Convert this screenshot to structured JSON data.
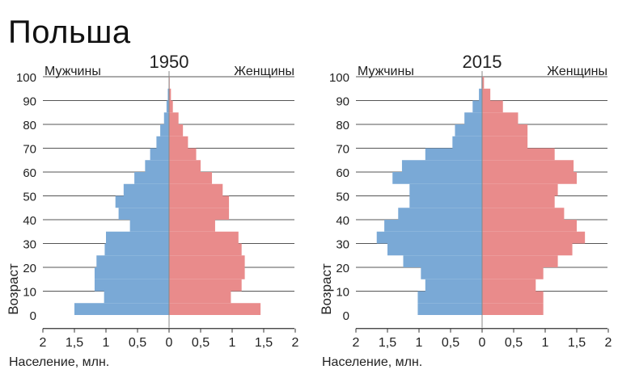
{
  "title": "Польша",
  "colors": {
    "male": "#7aa9d6",
    "female": "#e98b8b",
    "grid": "#555555",
    "axis": "#333333"
  },
  "chart_data": [
    {
      "type": "bar",
      "orientation": "horizontal-population-pyramid",
      "year_label": "1950",
      "left_label": "Мужчины",
      "right_label": "Женщины",
      "ylabel": "Возраст",
      "xlabel": "Население, млн.",
      "y_ticks": [
        "0",
        "10",
        "20",
        "30",
        "40",
        "50",
        "60",
        "70",
        "80",
        "90",
        "100"
      ],
      "x_ticks": [
        "2",
        "1,5",
        "1",
        "0,5",
        "0",
        "0,5",
        "1",
        "1,5",
        "2"
      ],
      "xlim": [
        -2,
        2
      ],
      "ylim": [
        -5,
        100
      ],
      "grid": true,
      "age_groups": [
        0,
        5,
        10,
        15,
        20,
        25,
        30,
        35,
        40,
        45,
        50,
        55,
        60,
        65,
        70,
        75,
        80,
        85,
        90,
        95
      ],
      "series": [
        {
          "name": "Мужчины",
          "values": [
            1.5,
            1.03,
            1.18,
            1.18,
            1.15,
            1.02,
            1.0,
            0.62,
            0.8,
            0.85,
            0.72,
            0.55,
            0.38,
            0.3,
            0.2,
            0.14,
            0.08,
            0.04,
            0.02,
            0.005
          ]
        },
        {
          "name": "Женщины",
          "values": [
            1.45,
            0.98,
            1.15,
            1.2,
            1.2,
            1.15,
            1.1,
            0.73,
            0.95,
            0.95,
            0.85,
            0.68,
            0.5,
            0.43,
            0.3,
            0.22,
            0.15,
            0.06,
            0.03,
            0.01
          ]
        }
      ]
    },
    {
      "type": "bar",
      "orientation": "horizontal-population-pyramid",
      "year_label": "2015",
      "left_label": "Мужчины",
      "right_label": "Женщины",
      "ylabel": "Возраст",
      "xlabel": "Население, млн.",
      "y_ticks": [
        "0",
        "10",
        "20",
        "30",
        "40",
        "50",
        "60",
        "70",
        "80",
        "90",
        "100"
      ],
      "x_ticks": [
        "2",
        "1,5",
        "1",
        "0,5",
        "0",
        "0,5",
        "1",
        "1,5",
        "2"
      ],
      "xlim": [
        -2,
        2
      ],
      "ylim": [
        -5,
        100
      ],
      "grid": true,
      "age_groups": [
        0,
        5,
        10,
        15,
        20,
        25,
        30,
        35,
        40,
        45,
        50,
        55,
        60,
        65,
        70,
        75,
        80,
        85,
        90,
        95
      ],
      "series": [
        {
          "name": "Мужчины",
          "values": [
            1.02,
            1.02,
            0.9,
            0.97,
            1.25,
            1.5,
            1.67,
            1.55,
            1.33,
            1.15,
            1.15,
            1.42,
            1.27,
            0.9,
            0.47,
            0.43,
            0.28,
            0.15,
            0.05,
            0.01
          ]
        },
        {
          "name": "Женщины",
          "values": [
            0.97,
            0.97,
            0.85,
            0.97,
            1.2,
            1.43,
            1.63,
            1.5,
            1.3,
            1.15,
            1.2,
            1.5,
            1.45,
            1.15,
            0.72,
            0.72,
            0.57,
            0.33,
            0.13,
            0.03
          ]
        }
      ]
    }
  ]
}
